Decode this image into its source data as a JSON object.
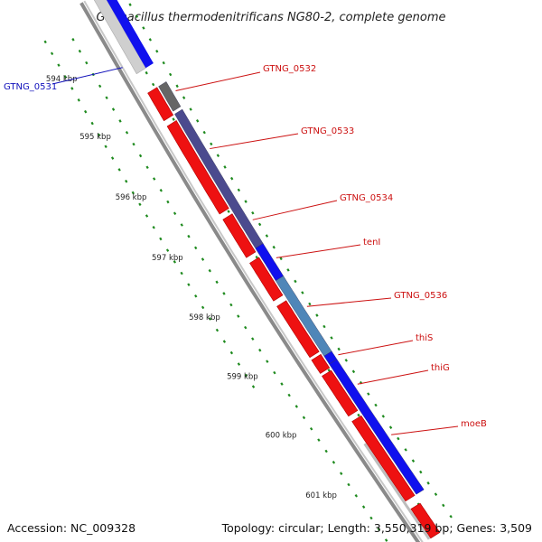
{
  "title": "Geobacillus thermodenitrificans NG80-2, complete genome",
  "footer": {
    "accession": "Accession: NC_009328",
    "topology": "Topology: circular; Length: 3,550,319 bp; Genes: 3,509"
  },
  "scale_ticks": [
    "594 kbp",
    "595 kbp",
    "596 kbp",
    "597 kbp",
    "598 kbp",
    "599 kbp",
    "600 kbp",
    "601 kbp"
  ],
  "colors": {
    "cds": "#ee1111",
    "backbone": "#8a8a8a",
    "tick": "#1e8a1e",
    "label_red": "#cc1111",
    "label_blue": "#1111bb",
    "gray_gene": "#666666",
    "purple_gene": "#4b4a8e",
    "blue_gene": "#1010ee",
    "steel_gene": "#4f86b8",
    "light_gene": "#cfcfcf"
  },
  "genes": [
    {
      "label": "GTNG_0531",
      "label_color": "#1111bb"
    },
    {
      "label": "GTNG_0532",
      "label_color": "#cc1111"
    },
    {
      "label": "GTNG_0533",
      "label_color": "#cc1111"
    },
    {
      "label": "GTNG_0534",
      "label_color": "#cc1111"
    },
    {
      "label": "tenI",
      "label_color": "#cc1111"
    },
    {
      "label": "GTNG_0536",
      "label_color": "#cc1111"
    },
    {
      "label": "thiS",
      "label_color": "#cc1111"
    },
    {
      "label": "thiG",
      "label_color": "#cc1111"
    },
    {
      "label": "moeB",
      "label_color": "#cc1111"
    }
  ]
}
